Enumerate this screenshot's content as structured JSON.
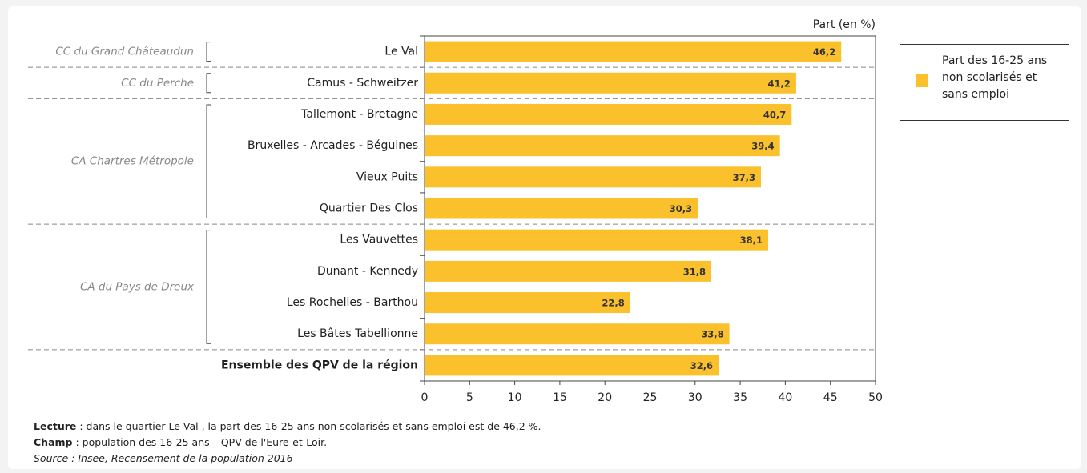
{
  "chart_data": {
    "type": "hbar",
    "axis_label": "Part (en %)",
    "xlim": [
      0,
      50
    ],
    "xticks": [
      0,
      5,
      10,
      15,
      20,
      25,
      30,
      35,
      40,
      45,
      50
    ],
    "color": "#fbc12d",
    "legend": "Part des 16-25 ans non scolarisés et sans emploi",
    "groups": [
      {
        "label": "CC du Grand Châteaudun",
        "categories": [
          "Le Val"
        ],
        "values": [
          46.2
        ],
        "value_labels": [
          "46,2"
        ]
      },
      {
        "label": "CC du Perche",
        "categories": [
          "Camus - Schweitzer"
        ],
        "values": [
          41.2
        ],
        "value_labels": [
          "41,2"
        ]
      },
      {
        "label": "CA Chartres Métropole",
        "categories": [
          "Tallemont - Bretagne",
          "Bruxelles - Arcades - Béguines",
          "Vieux Puits",
          "Quartier Des Clos"
        ],
        "values": [
          40.7,
          39.4,
          37.3,
          30.3
        ],
        "value_labels": [
          "40,7",
          "39,4",
          "37,3",
          "30,3"
        ]
      },
      {
        "label": "CA du Pays de Dreux",
        "categories": [
          "Les Vauvettes",
          "Dunant - Kennedy",
          "Les Rochelles - Barthou",
          "Les Bâtes Tabellionne"
        ],
        "values": [
          38.1,
          31.8,
          22.8,
          33.8
        ],
        "value_labels": [
          "38,1",
          "31,8",
          "22,8",
          "33,8"
        ]
      }
    ],
    "total": {
      "category": "Ensemble des QPV de la région",
      "value": 32.6,
      "value_label": "32,6"
    },
    "notes": [
      {
        "label": "Lecture",
        "text": " : dans le quartier Le Val , la part des 16-25 ans non scolarisés et sans emploi est de 46,2 %."
      },
      {
        "label": "Champ",
        "text": " : population des 16-25 ans – QPV de l'Eure-et-Loir."
      }
    ],
    "source": "Source : Insee, Recensement de la population 2016"
  }
}
